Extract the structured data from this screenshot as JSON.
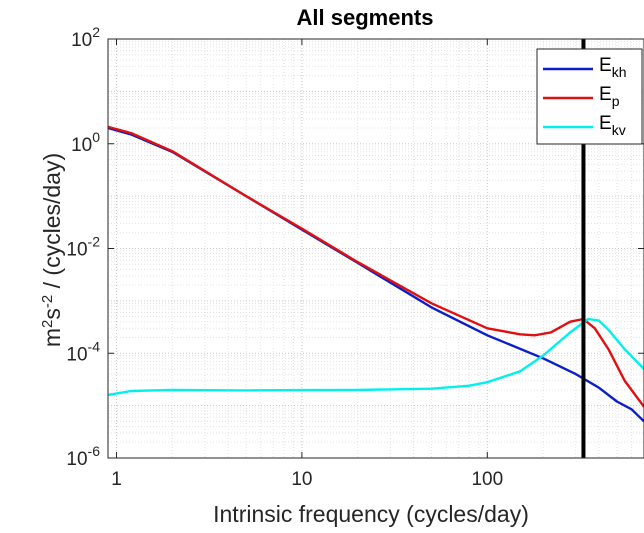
{
  "chart_data": {
    "type": "line",
    "title": "All segments",
    "xlabel": "Intrinsic frequency (cycles/day)",
    "ylabel": {
      "base": "m",
      "sup1": "2",
      "mid": "s",
      "sup2": "-2",
      "rest": " / (cycles/day)"
    },
    "x_scale": "log",
    "y_scale": "log",
    "xlim": [
      0.9,
      700
    ],
    "ylim": [
      1e-06,
      100
    ],
    "grid": true,
    "legend_position": "top-right",
    "x_ticks": [
      {
        "value": 1,
        "label": "1"
      },
      {
        "value": 10,
        "label": "10"
      },
      {
        "value": 100,
        "label": "100"
      }
    ],
    "y_ticks": [
      {
        "value": 1e-06,
        "base": "10",
        "exp": "-6"
      },
      {
        "value": 0.0001,
        "base": "10",
        "exp": "-4"
      },
      {
        "value": 0.01,
        "base": "10",
        "exp": "-2"
      },
      {
        "value": 1,
        "base": "10",
        "exp": "0"
      },
      {
        "value": 100,
        "base": "10",
        "exp": "2"
      }
    ],
    "vertical_line": {
      "x": 330,
      "color": "#000000"
    },
    "series": [
      {
        "name": "E",
        "sub": "kh",
        "color": "#0a1fc8",
        "x": [
          0.9,
          1.2,
          2,
          5,
          10,
          20,
          50,
          100,
          200,
          300,
          400,
          500,
          600,
          700
        ],
        "y": [
          2.0,
          1.5,
          0.7,
          0.1,
          0.023,
          0.0053,
          0.00075,
          0.00022,
          8e-05,
          4e-05,
          2.2e-05,
          1.2e-05,
          8.5e-06,
          5e-06
        ]
      },
      {
        "name": "E",
        "sub": "p",
        "color": "#e01010",
        "x": [
          0.9,
          1.2,
          2,
          5,
          10,
          20,
          50,
          100,
          150,
          180,
          220,
          280,
          330,
          380,
          450,
          550,
          700
        ],
        "y": [
          2.1,
          1.6,
          0.72,
          0.1,
          0.024,
          0.0055,
          0.0009,
          0.0003,
          0.00023,
          0.00022,
          0.00025,
          0.0004,
          0.00045,
          0.0003,
          0.00012,
          3e-05,
          9.5e-06
        ]
      },
      {
        "name": "E",
        "sub": "kv",
        "color": "#00f0f0",
        "x": [
          0.9,
          1.2,
          2,
          5,
          10,
          20,
          50,
          80,
          100,
          150,
          200,
          280,
          350,
          400,
          450,
          550,
          700
        ],
        "y": [
          1.6e-05,
          1.9e-05,
          2e-05,
          1.95e-05,
          1.98e-05,
          2e-05,
          2.1e-05,
          2.4e-05,
          2.8e-05,
          4.5e-05,
          9e-05,
          0.00025,
          0.00045,
          0.00042,
          0.00028,
          0.00012,
          5e-05
        ]
      }
    ]
  }
}
